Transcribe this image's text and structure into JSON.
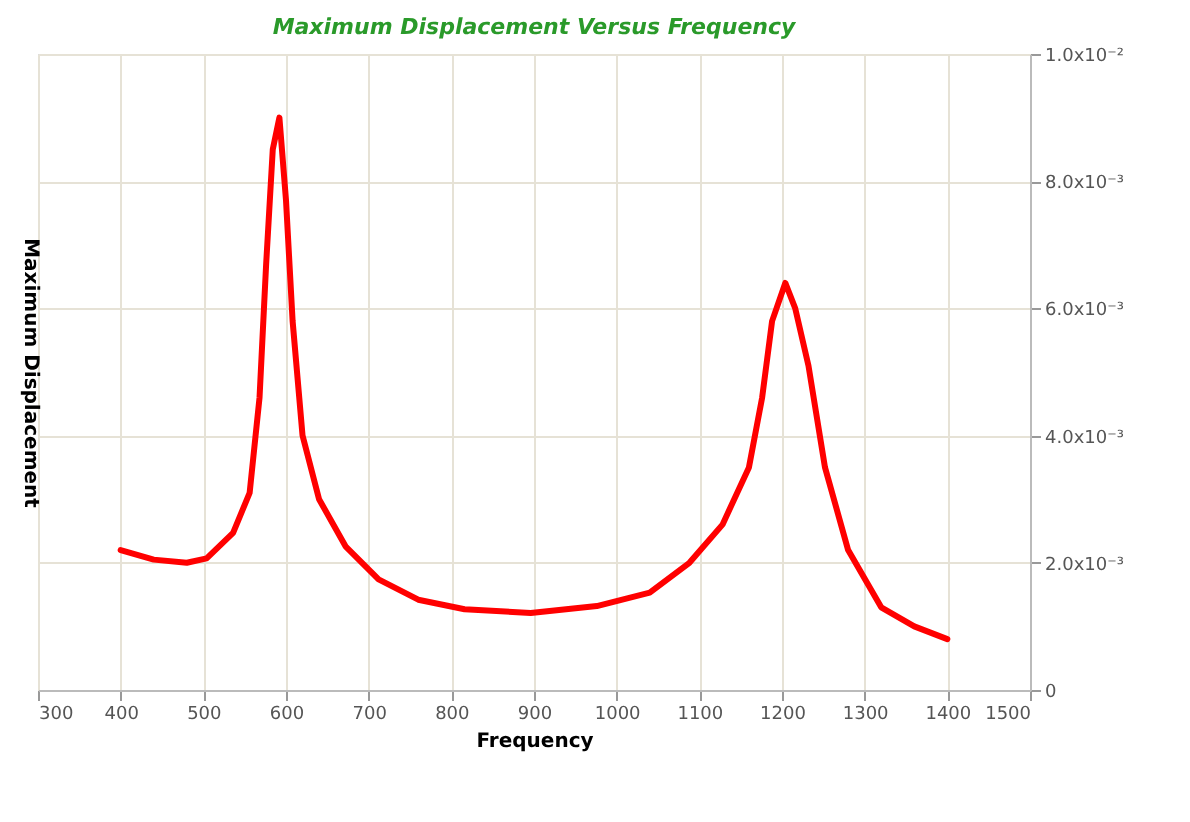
{
  "chart_data": {
    "type": "line",
    "title": "Maximum Displacement Versus Frequency",
    "xlabel": "Frequency",
    "ylabel": "Maximum Displacement",
    "x": [
      400,
      440,
      480,
      504,
      536,
      556,
      568,
      576,
      584,
      592,
      600,
      608,
      620,
      640,
      672,
      712,
      760,
      816,
      896,
      976,
      1040,
      1088,
      1128,
      1160,
      1176,
      1188,
      1204,
      1216,
      1232,
      1252,
      1280,
      1320,
      1360,
      1400
    ],
    "series": [
      {
        "color": "#ff0000",
        "values": [
          0.0022,
          0.00205,
          0.002,
          0.00207,
          0.00247,
          0.0031,
          0.0046,
          0.0067,
          0.0085,
          0.009,
          0.0077,
          0.0058,
          0.004,
          0.003,
          0.00226,
          0.00174,
          0.00142,
          0.00127,
          0.00121,
          0.00132,
          0.00153,
          0.002,
          0.0026,
          0.0035,
          0.0046,
          0.0058,
          0.0064,
          0.006,
          0.0051,
          0.0035,
          0.0022,
          0.0013,
          0.001,
          0.0008
        ]
      }
    ],
    "xlim": [
      300,
      1500
    ],
    "xticks": [
      300,
      400,
      500,
      600,
      700,
      800,
      900,
      1000,
      1100,
      1200,
      1300,
      1400,
      1500
    ],
    "ylim": [
      0,
      0.01
    ],
    "yticks": [
      0,
      {
        "value": 0.002,
        "label": "2.0x10⁻³"
      },
      {
        "value": 0.004,
        "label": "4.0x10⁻³"
      },
      {
        "value": 0.006,
        "label": "6.0x10⁻³"
      },
      {
        "value": 0.008,
        "label": "8.0x10⁻³"
      },
      {
        "value": 0.01,
        "label": "1.0x10⁻²"
      }
    ],
    "grid": true,
    "line_style": "solid",
    "marker": "none"
  }
}
